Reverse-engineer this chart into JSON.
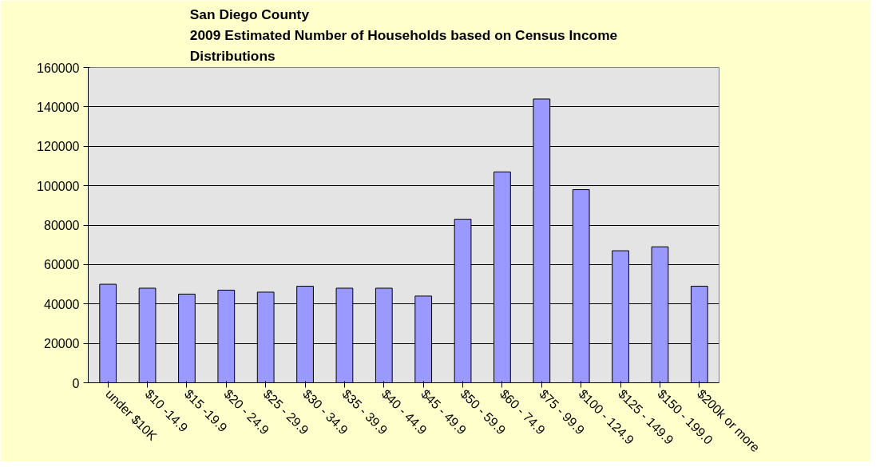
{
  "chart_data": {
    "type": "bar",
    "title": "San Diego County\n2009 Estimated Number of Households based on Census Income\nDistributions",
    "categories": [
      "under $10K",
      "$10 -14.9",
      "$15 -19.9",
      "$20 - 24.9",
      "$25 - 29.9",
      "$30 - 34.9",
      "$35 - 39.9",
      "$40 - 44.9",
      "$45 - 49.9",
      "$50 - 59.9",
      "$60 - 74.9",
      "$75 - 99.9",
      "$100 - 124.9",
      "$125 - 149.9",
      "$150 - 199.0",
      "$200k or more"
    ],
    "values": [
      50000,
      48000,
      45000,
      47000,
      46000,
      49000,
      48000,
      48000,
      44000,
      83000,
      107000,
      144000,
      98000,
      67000,
      69000,
      49000
    ],
    "color": "#9999ff",
    "ylim": [
      0,
      160000
    ],
    "yticks": [
      0,
      20000,
      40000,
      60000,
      80000,
      100000,
      120000,
      140000,
      160000
    ],
    "grid": "y"
  }
}
